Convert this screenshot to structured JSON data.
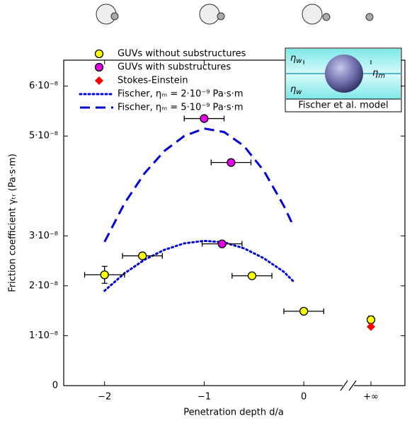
{
  "chart_data": {
    "type": "scatter",
    "xlabel": "Penetration depth d/a",
    "ylabel": "Friction coefficient γₜᵣ (Pa·s·m)",
    "xlim": [
      -2.41,
      0.39
    ],
    "ylim": [
      0,
      6.52e-08
    ],
    "xticks": [
      {
        "value": -2,
        "label": "−2"
      },
      {
        "value": -1,
        "label": "−1"
      },
      0
    ],
    "yticks": [
      0,
      {
        "value": 1e-08,
        "label": "1·10⁻⁸"
      },
      {
        "value": 2e-08,
        "label": "2·10⁻⁸"
      },
      {
        "value": 3e-08,
        "label": "3·10⁻⁸"
      },
      {
        "value": 5e-08,
        "label": "5·10⁻⁸"
      },
      {
        "value": 6e-08,
        "label": "6·10⁻⁸"
      }
    ],
    "infinity_label": "+∞",
    "legend": "upper left",
    "series": [
      {
        "name": "GUVs without substructures",
        "color": "#ffff00",
        "marker": "circle",
        "x": [
          -2,
          -1.62,
          -0.52,
          0
        ],
        "values": [
          2.22e-08,
          2.6e-08,
          2.2e-08,
          1.49e-08
        ],
        "xerr": [
          0.2,
          0.2,
          0.2,
          0.2
        ],
        "yerr": [
          1.7e-09,
          null,
          null,
          null
        ],
        "values_at_infinity": [
          1.32e-08
        ],
        "yerr_at_infinity": [
          7e-10
        ]
      },
      {
        "name": "GUVs with substructures",
        "color": "#e600e6",
        "marker": "circle",
        "x": [
          -1,
          -0.73,
          -0.82
        ],
        "values": [
          5.35e-08,
          4.47e-08,
          2.84e-08
        ],
        "xerr": [
          0.2,
          0.2,
          0.2
        ],
        "yerr": [
          null,
          null,
          null
        ]
      },
      {
        "name": "Stokes-Einstein",
        "color": "#ff0000",
        "marker": "diamond",
        "values_at_infinity": [
          1.18e-08
        ]
      },
      {
        "name": "Fischer, ηₘ = 2·10⁻⁹ Pa·s·m",
        "color": "#0000dd",
        "style": "dotted",
        "x": [
          -2,
          -1.8,
          -1.6,
          -1.4,
          -1.2,
          -1,
          -0.8,
          -0.6,
          -0.4,
          -0.2,
          -0.1
        ],
        "values": [
          1.9e-08,
          2.25e-08,
          2.52e-08,
          2.72e-08,
          2.85e-08,
          2.9e-08,
          2.87e-08,
          2.75e-08,
          2.55e-08,
          2.28e-08,
          2.08e-08
        ]
      },
      {
        "name": "Fischer, ηₘ = 5·10⁻⁹ Pa·s·m",
        "color": "#0000dd",
        "style": "dashed",
        "x": [
          -2,
          -1.8,
          -1.6,
          -1.4,
          -1.2,
          -1,
          -0.8,
          -0.6,
          -0.4,
          -0.2,
          -0.1
        ],
        "values": [
          2.88e-08,
          3.65e-08,
          4.25e-08,
          4.7e-08,
          5e-08,
          5.15e-08,
          5.08e-08,
          4.8e-08,
          4.3e-08,
          3.6e-08,
          3.18e-08
        ]
      }
    ],
    "inset": {
      "top": {
        "symbol": "η",
        "sub": "w"
      },
      "middle": {
        "symbol": "η",
        "sub": "m"
      },
      "bottom": {
        "symbol": "η",
        "sub": "w"
      },
      "caption": "Fischer et al. model"
    }
  }
}
